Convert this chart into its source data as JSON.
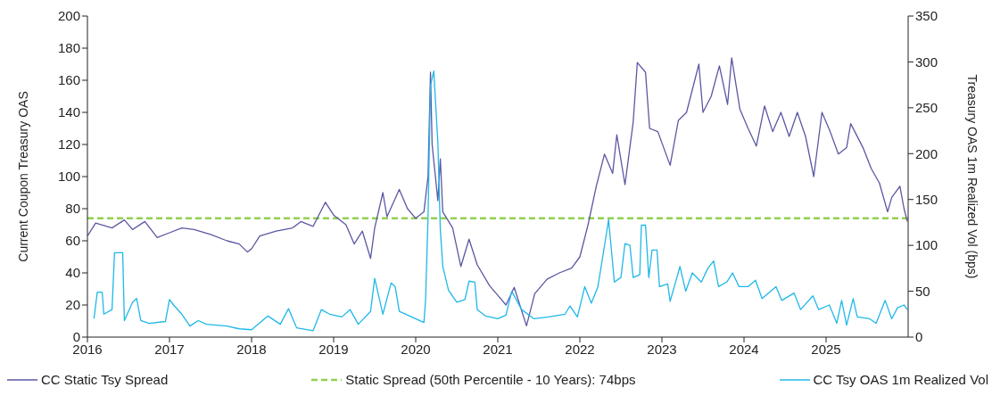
{
  "chart_data": {
    "type": "line",
    "ylabel": "Current Coupon Treasury OAS",
    "y2label": "Treasury OAS 1m Realized Vol (bps)",
    "xlim": [
      2016,
      2026
    ],
    "xticks": [
      2016,
      2017,
      2018,
      2019,
      2020,
      2021,
      2022,
      2023,
      2024,
      2025
    ],
    "ylim": [
      0,
      200
    ],
    "yticks": [
      0,
      20,
      40,
      60,
      80,
      100,
      120,
      140,
      160,
      180,
      200
    ],
    "y2lim": [
      0,
      350
    ],
    "y2ticks": [
      0,
      50,
      100,
      150,
      200,
      250,
      300,
      350
    ],
    "legend": "bottom",
    "marker": "none",
    "ref_lines": [
      {
        "axis": "y",
        "value": 74,
        "label": "Static Spread (50th Percentile - 10 Years): 74bps",
        "color": "#92d050",
        "line_style": "dashed"
      }
    ],
    "series": [
      {
        "name": "CC Static Tsy Spread",
        "color": "#5b57a3",
        "line_style": "solid",
        "x": [
          2016,
          2016.1,
          2016.3,
          2016.45,
          2016.55,
          2016.7,
          2016.85,
          2017,
          2017.15,
          2017.3,
          2017.5,
          2017.7,
          2017.85,
          2017.95,
          2018,
          2018.1,
          2018.3,
          2018.5,
          2018.6,
          2018.75,
          2018.9,
          2019,
          2019.15,
          2019.25,
          2019.35,
          2019.45,
          2019.5,
          2019.6,
          2019.65,
          2019.8,
          2019.9,
          2020,
          2020.1,
          2020.15,
          2020.18,
          2020.2,
          2020.23,
          2020.27,
          2020.3,
          2020.33,
          2020.45,
          2020.55,
          2020.65,
          2020.75,
          2020.9,
          2021,
          2021.1,
          2021.2,
          2021.35,
          2021.45,
          2021.6,
          2021.75,
          2021.9,
          2022,
          2022.1,
          2022.2,
          2022.3,
          2022.4,
          2022.45,
          2022.55,
          2022.65,
          2022.7,
          2022.8,
          2022.85,
          2022.95,
          2023.1,
          2023.2,
          2023.3,
          2023.45,
          2023.5,
          2023.6,
          2023.7,
          2023.8,
          2023.85,
          2023.95,
          2024.05,
          2024.15,
          2024.25,
          2024.35,
          2024.45,
          2024.55,
          2024.65,
          2024.75,
          2024.85,
          2024.95,
          2025.05,
          2025.15,
          2025.25,
          2025.3,
          2025.45,
          2025.55,
          2025.65,
          2025.75,
          2025.8,
          2025.9,
          2025.95,
          2025.99
        ],
        "values": [
          63,
          71,
          68,
          73,
          67,
          72,
          62,
          65,
          68,
          67,
          64,
          60,
          58,
          53,
          55,
          63,
          66,
          68,
          72,
          69,
          84,
          76,
          70,
          58,
          66,
          49,
          68,
          90,
          75,
          92,
          80,
          74,
          78,
          100,
          165,
          120,
          105,
          85,
          111,
          78,
          68,
          44,
          61,
          45,
          32,
          26,
          20,
          31,
          7,
          27,
          36,
          40,
          43,
          50,
          70,
          94,
          114,
          102,
          126,
          95,
          134,
          171,
          165,
          130,
          128,
          107,
          135,
          140,
          170,
          140,
          150,
          169,
          145,
          174,
          142,
          130,
          119,
          144,
          128,
          140,
          125,
          140,
          125,
          100,
          140,
          128,
          114,
          118,
          133,
          118,
          105,
          96,
          78,
          87,
          94,
          80,
          72
        ]
      },
      {
        "name": "CC Tsy OAS 1m Realized Vol",
        "color": "#1fb8e8",
        "line_style": "solid",
        "axis": "y2",
        "x": [
          2016.08,
          2016.12,
          2016.18,
          2016.2,
          2016.3,
          2016.33,
          2016.43,
          2016.45,
          2016.55,
          2016.6,
          2016.65,
          2016.75,
          2016.95,
          2017,
          2017.05,
          2017.15,
          2017.25,
          2017.35,
          2017.45,
          2017.7,
          2017.85,
          2018,
          2018.2,
          2018.35,
          2018.45,
          2018.55,
          2018.75,
          2018.85,
          2018.95,
          2019.1,
          2019.2,
          2019.3,
          2019.45,
          2019.5,
          2019.6,
          2019.7,
          2019.75,
          2019.8,
          2019.95,
          2020.1,
          2020.12,
          2020.15,
          2020.18,
          2020.22,
          2020.27,
          2020.3,
          2020.33,
          2020.4,
          2020.5,
          2020.6,
          2020.65,
          2020.72,
          2020.75,
          2020.85,
          2021,
          2021.1,
          2021.17,
          2021.29,
          2021.44,
          2021.62,
          2021.82,
          2021.88,
          2021.97,
          2022.06,
          2022.14,
          2022.22,
          2022.31,
          2022.35,
          2022.4,
          2022.42,
          2022.5,
          2022.55,
          2022.61,
          2022.65,
          2022.73,
          2022.75,
          2022.8,
          2022.84,
          2022.88,
          2022.94,
          2022.97,
          2023.07,
          2023.1,
          2023.22,
          2023.29,
          2023.37,
          2023.48,
          2023.56,
          2023.63,
          2023.69,
          2023.79,
          2023.86,
          2023.94,
          2024.05,
          2024.14,
          2024.22,
          2024.39,
          2024.46,
          2024.61,
          2024.69,
          2024.84,
          2024.91,
          2025.04,
          2025.13,
          2025.19,
          2025.25,
          2025.33,
          2025.38,
          2025.53,
          2025.61,
          2025.72,
          2025.8,
          2025.87,
          2025.95,
          2025.99
        ],
        "values": [
          20,
          49,
          49,
          25,
          30,
          92,
          92,
          18,
          38,
          42,
          18,
          15,
          17,
          41,
          35,
          25,
          12,
          18,
          14,
          12,
          9,
          8,
          23,
          14,
          31,
          10,
          7,
          30,
          25,
          22,
          30,
          14,
          28,
          64,
          25,
          59,
          55,
          28,
          22,
          16,
          40,
          130,
          274,
          290,
          212,
          117,
          77,
          51,
          38,
          41,
          61,
          60,
          30,
          23,
          20,
          24,
          50,
          30,
          20,
          22,
          25,
          34,
          22,
          55,
          37,
          55,
          105,
          128,
          80,
          60,
          65,
          102,
          100,
          65,
          68,
          122,
          122,
          65,
          95,
          95,
          55,
          58,
          39,
          77,
          50,
          70,
          60,
          75,
          83,
          55,
          60,
          70,
          55,
          55,
          62,
          42,
          55,
          40,
          48,
          30,
          45,
          30,
          35,
          15,
          40,
          13,
          42,
          22,
          20,
          15,
          40,
          20,
          32,
          35,
          30
        ]
      }
    ]
  }
}
